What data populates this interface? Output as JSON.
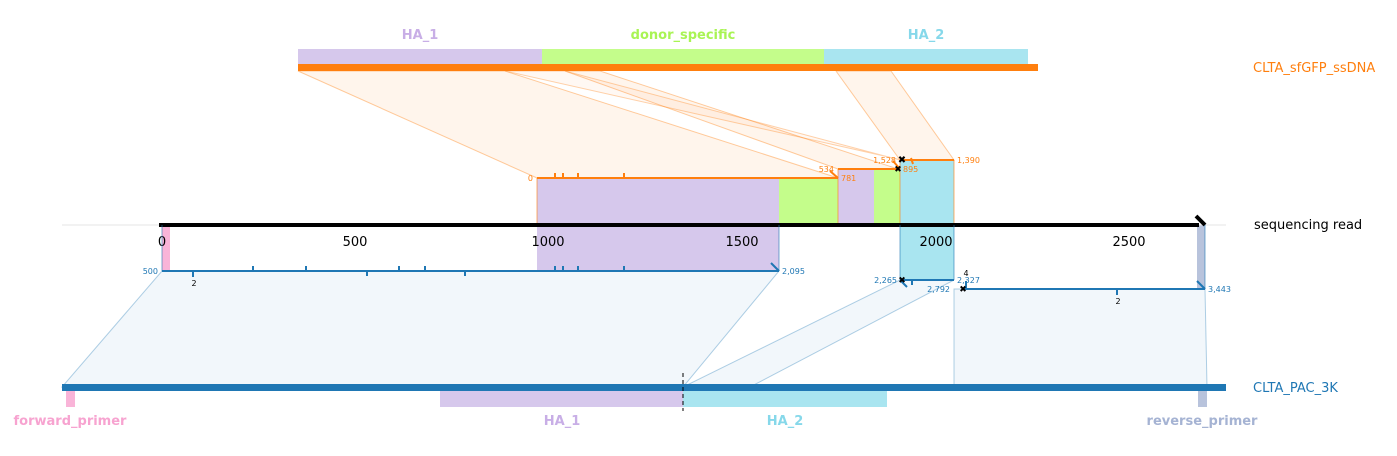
{
  "colors": {
    "ha1": "#d6c8ec",
    "ha1_label": "#c8aee6",
    "donor": "#c4fd8b",
    "donor_label": "#a9f454",
    "ha2": "#a9e5f0",
    "ha2_label": "#86d8ea",
    "forward_primer": "#f9b4d8",
    "forward_primer_label": "#f7a3d0",
    "reverse_primer": "#b8c3dc",
    "reverse_primer_label": "#a5b3d3",
    "ssdna": "#ff7f0e",
    "pac": "#1f77b4",
    "read": "#000000"
  },
  "ssdna_feature_labels": {
    "ha1": "HA_1",
    "donor": "donor_specific",
    "ha2": "HA_2"
  },
  "target_labels": {
    "ssdna": "CLTA_sfGFP_ssDNA",
    "read": "sequencing read",
    "pac": "CLTA_PAC_3K"
  },
  "pac_feature_labels": {
    "forward_primer": "forward_primer",
    "ha1": "HA_1",
    "ha2": "HA_2",
    "reverse_primer": "reverse_primer"
  },
  "read_axis": {
    "ticks": [
      "0",
      "500",
      "1000",
      "1500",
      "2000",
      "2500"
    ]
  },
  "alignment_labels": {
    "ssdna_1_start": "0",
    "ssdna_2_start": "534",
    "ssdna_2_end": "781",
    "ssdna_3_start": "1,528",
    "ssdna_3_end": "895",
    "ssdna_4_end": "1,390",
    "pac_1_start": "500",
    "pac_1_end": "2,095",
    "pac_2_start": "2,265",
    "pac_2_end": "2,327",
    "pac_3_start": "2,792",
    "pac_3_end": "3,443",
    "pac_indel_1": "2",
    "pac_indel_2": "4",
    "pac_indel_3": "2"
  }
}
